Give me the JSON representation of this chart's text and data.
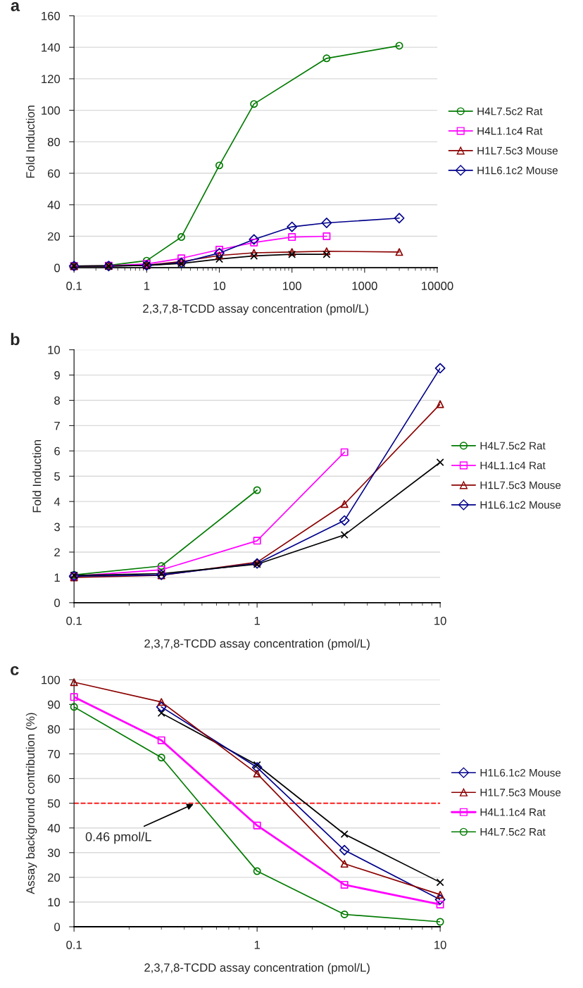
{
  "chart_data": [
    {
      "type": "line",
      "title": "a",
      "xlabel": "2,3,7,8-TCDD assay concentration (pmol/L)",
      "ylabel": "Fold Induction",
      "log": "x",
      "xlim": [
        0.1,
        10000
      ],
      "xticks": [
        0.1,
        1,
        10,
        100,
        1000,
        10000
      ],
      "ylim": [
        0,
        160
      ],
      "yticks": [
        0,
        20,
        40,
        60,
        80,
        100,
        120,
        140,
        160
      ],
      "grid": "y",
      "legend": "right",
      "series": [
        {
          "name": "H4L7.5c2 Rat",
          "color": "#007a00",
          "marker": "circle",
          "x": [
            0.1,
            0.3,
            1,
            3,
            10,
            30,
            300,
            3000
          ],
          "values": [
            1.1,
            1.5,
            4.5,
            19.5,
            65,
            104,
            133,
            141
          ]
        },
        {
          "name": "H4L1.1c4 Rat",
          "color": "#ff00ff",
          "marker": "square",
          "x": [
            0.1,
            0.3,
            1,
            3,
            10,
            30,
            100,
            300
          ],
          "values": [
            1.1,
            1.3,
            2.4,
            6,
            11.5,
            16,
            19.5,
            20
          ]
        },
        {
          "name": "H1L7.5c3 Mouse",
          "color": "#8b0000",
          "marker": "triangle",
          "x": [
            0.1,
            0.3,
            1,
            3,
            10,
            30,
            100,
            300,
            3000
          ],
          "values": [
            1,
            1.1,
            1.6,
            3.9,
            7.8,
            9.5,
            10,
            10.5,
            10
          ]
        },
        {
          "name": "H1L6.1c2 Mouse",
          "color": "#00008b",
          "marker": "diamond",
          "x": [
            0.1,
            0.3,
            1,
            3,
            10,
            30,
            100,
            300,
            3000
          ],
          "values": [
            1.1,
            1.1,
            1.5,
            3.2,
            9.3,
            18,
            26,
            28.5,
            31.5
          ]
        },
        {
          "color": "#000000",
          "marker": "cross",
          "x": [
            0.1,
            0.3,
            1,
            3,
            10,
            30,
            100,
            300
          ],
          "values": [
            1.1,
            1.1,
            1.5,
            2.7,
            5.5,
            7.5,
            8.5,
            8.5
          ]
        }
      ]
    },
    {
      "type": "line",
      "title": "b",
      "xlabel": "2,3,7,8-TCDD assay concentration (pmol/L)",
      "ylabel": "Fold Induction",
      "log": "x",
      "xlim": [
        0.1,
        10
      ],
      "xticks": [
        0.1,
        1,
        10
      ],
      "ylim": [
        0,
        10
      ],
      "yticks": [
        0,
        1,
        2,
        3,
        4,
        5,
        6,
        7,
        8,
        9,
        10
      ],
      "grid": "y",
      "legend": "right",
      "series": [
        {
          "name": "H4L7.5c2 Rat",
          "color": "#007a00",
          "marker": "circle",
          "x": [
            0.1,
            0.3,
            1
          ],
          "values": [
            1.1,
            1.45,
            4.45
          ]
        },
        {
          "name": "H4L1.1c4 Rat",
          "color": "#ff00ff",
          "marker": "square",
          "x": [
            0.1,
            0.3,
            1,
            3
          ],
          "values": [
            1.05,
            1.3,
            2.45,
            5.95
          ]
        },
        {
          "name": "H1L7.5c3 Mouse",
          "color": "#8b0000",
          "marker": "triangle",
          "x": [
            0.1,
            0.3,
            1,
            3,
            10
          ],
          "values": [
            1.0,
            1.08,
            1.6,
            3.9,
            7.85
          ]
        },
        {
          "name": "H1L6.1c2 Mouse",
          "color": "#00008b",
          "marker": "diamond",
          "x": [
            0.1,
            0.3,
            1,
            3,
            10
          ],
          "values": [
            1.05,
            1.1,
            1.55,
            3.25,
            9.27
          ]
        },
        {
          "color": "#000000",
          "marker": "cross",
          "x": [
            0.1,
            0.3,
            1,
            3,
            10
          ],
          "values": [
            1.08,
            1.15,
            1.52,
            2.68,
            5.55
          ]
        }
      ]
    },
    {
      "type": "line",
      "title": "c",
      "xlabel": "2,3,7,8-TCDD assay concentration (pmol/L)",
      "ylabel": "Assay background contribution (%)",
      "log": "x",
      "xlim": [
        0.1,
        10
      ],
      "xticks": [
        0.1,
        1,
        10
      ],
      "ylim": [
        0,
        100
      ],
      "yticks": [
        0,
        10,
        20,
        30,
        40,
        50,
        60,
        70,
        80,
        90,
        100
      ],
      "grid": "y",
      "legend": "right",
      "ref_lines": [
        {
          "axis": "y",
          "value": 50,
          "color": "#ff0000",
          "line_style": "dashed"
        }
      ],
      "annotations": [
        {
          "text": "0.46 pmol/L",
          "x": 0.46,
          "y": 50
        }
      ],
      "series": [
        {
          "color": "#000000",
          "marker": "cross",
          "x": [
            0.3,
            1,
            3,
            10
          ],
          "values": [
            86.5,
            65.5,
            37.5,
            18
          ]
        },
        {
          "name": "H1L6.1c2 Mouse",
          "color": "#00008b",
          "marker": "diamond",
          "x": [
            0.3,
            1,
            3,
            10
          ],
          "values": [
            89,
            64.5,
            31,
            11
          ]
        },
        {
          "name": "H1L7.5c3 Mouse",
          "color": "#8b0000",
          "marker": "triangle",
          "x": [
            0.1,
            0.3,
            1,
            3,
            10
          ],
          "values": [
            99,
            91,
            62,
            25.5,
            13
          ]
        },
        {
          "name": "H4L1.1c4 Rat",
          "color": "#ff00ff",
          "marker": "square",
          "x": [
            0.1,
            0.3,
            1,
            3,
            10
          ],
          "values": [
            93,
            75.5,
            41,
            17,
            9
          ]
        },
        {
          "name": "H4L7.5c2 Rat",
          "color": "#007a00",
          "marker": "circle",
          "x": [
            0.1,
            0.3,
            1,
            3,
            10
          ],
          "values": [
            89,
            68.5,
            22.5,
            5,
            2
          ]
        }
      ]
    }
  ]
}
